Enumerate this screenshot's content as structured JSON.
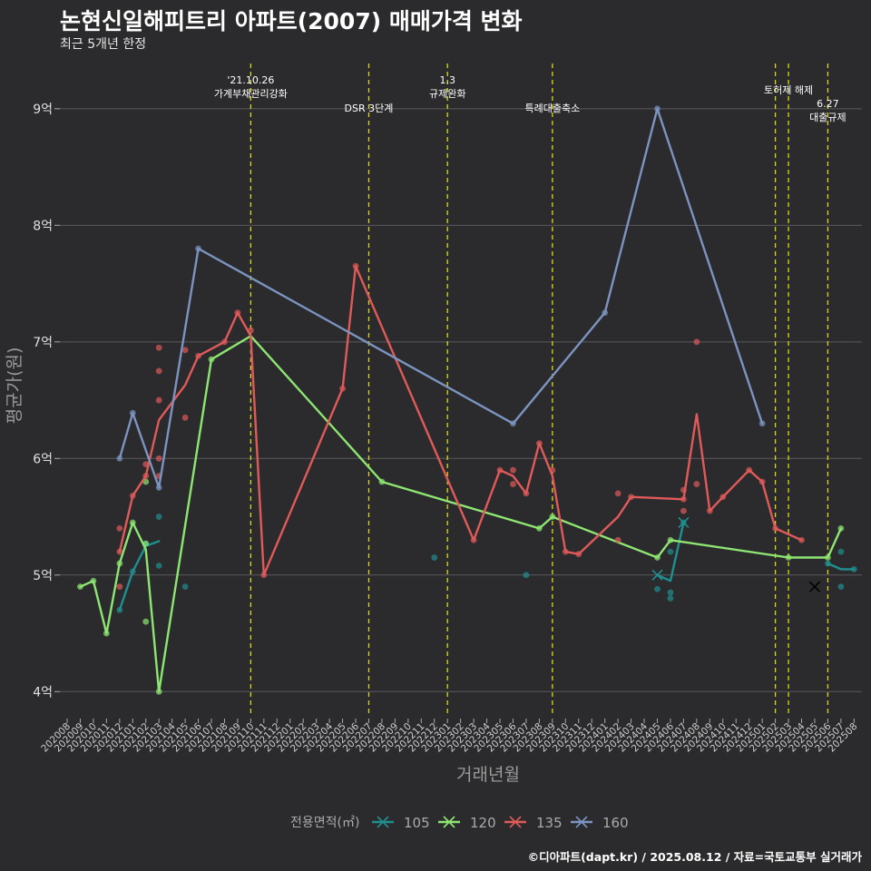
{
  "title": "논현신일해피트리 아파트(2007) 매매가격 변화",
  "subtitle": "최근 5개년 한정",
  "credit": "©디아파트(dapt.kr) / 2025.08.12 / 자료=국토교통부 실거래가",
  "colors": {
    "background": "#2b2b2d",
    "grid": "#5a5a5e",
    "event_line": "#d8d81c",
    "105": "#1f8f8f",
    "120": "#8ee672",
    "135": "#e05a5a",
    "160": "#7c94c0"
  },
  "chart_data": {
    "type": "line",
    "title": "논현신일해피트리 아파트(2007) 매매가격 변화",
    "subtitle": "최근 5개년 한정",
    "xlabel": "거래년월",
    "ylabel": "평균가(원)",
    "ylim": [
      3.8,
      9.45
    ],
    "xlim": [
      "2020-08",
      "2025-08"
    ],
    "y_ticks": [
      {
        "value": 4,
        "label": "4억"
      },
      {
        "value": 5,
        "label": "5억"
      },
      {
        "value": 6,
        "label": "6억"
      },
      {
        "value": 7,
        "label": "7억"
      },
      {
        "value": 8,
        "label": "8억"
      },
      {
        "value": 9,
        "label": "9억"
      }
    ],
    "x_ticks": [
      "202008",
      "202009",
      "202010",
      "202011",
      "202012",
      "202101",
      "202102",
      "202103",
      "202104",
      "202105",
      "202106",
      "202107",
      "202108",
      "202109",
      "202110",
      "202111",
      "202112",
      "202201",
      "202202",
      "202203",
      "202204",
      "202205",
      "202206",
      "202207",
      "202208",
      "202209",
      "202210",
      "202211",
      "202212",
      "202301",
      "202302",
      "202303",
      "202304",
      "202305",
      "202306",
      "202307",
      "202308",
      "202309",
      "202310",
      "202311",
      "202312",
      "202401",
      "202402",
      "202403",
      "202404",
      "202405",
      "202406",
      "202407",
      "202408",
      "202409",
      "202410",
      "202411",
      "202412",
      "202501",
      "202502",
      "202503",
      "202504",
      "202505",
      "202506",
      "202507",
      "202508"
    ],
    "grid": true,
    "legend_title": "전용면적(㎡)",
    "legend_position": "bottom",
    "events": [
      {
        "date": "2021-10",
        "label": "'21.10.26\n가계부채관리강화",
        "row": 0
      },
      {
        "date": "2022-07",
        "label": "DSR 3단계",
        "row": 1
      },
      {
        "date": "2023-01",
        "label": "1.3\n규제완화",
        "row": 0
      },
      {
        "date": "2023-09",
        "label": "특례대출축소",
        "row": 1
      },
      {
        "date": "2025-02",
        "label": "",
        "row": 0
      },
      {
        "date": "2025-03",
        "label": "토허제 해제",
        "row": 0
      },
      {
        "date": "2025-06",
        "label": "6.27\n대출규제",
        "row": 2
      }
    ],
    "series": [
      {
        "name": "105",
        "line": [
          [
            "2020-12",
            4.7
          ],
          [
            "2021-01",
            5.03
          ],
          [
            "2021-02",
            5.25
          ],
          [
            "2021-03",
            5.29
          ]
        ],
        "line2": [
          [
            "2024-05",
            5.0
          ],
          [
            "2024-06",
            4.95
          ],
          [
            "2024-07",
            5.45
          ]
        ],
        "line3": [
          [
            "2025-06",
            5.1
          ],
          [
            "2025-07",
            5.05
          ],
          [
            "2025-08",
            5.05
          ]
        ],
        "points": [
          [
            "2020-12",
            4.7
          ],
          [
            "2021-01",
            5.03
          ],
          [
            "2021-02",
            5.27
          ],
          [
            "2021-03",
            5.5
          ],
          [
            "2021-03",
            5.08
          ],
          [
            "2021-05",
            4.9
          ],
          [
            "2022-12",
            5.15
          ],
          [
            "2023-07",
            5.0
          ],
          [
            "2024-05",
            4.88
          ],
          [
            "2024-06",
            4.85
          ],
          [
            "2024-06",
            4.8
          ],
          [
            "2024-06",
            5.2
          ],
          [
            "2024-07",
            5.45
          ],
          [
            "2025-06",
            5.1
          ],
          [
            "2025-07",
            5.2
          ],
          [
            "2025-07",
            4.9
          ],
          [
            "2025-08",
            5.05
          ]
        ],
        "crosses": [
          [
            "2024-05",
            5.0
          ],
          [
            "2024-07",
            5.45
          ],
          [
            "2025-05",
            4.9
          ]
        ]
      },
      {
        "name": "120",
        "line": [
          [
            "2020-09",
            4.9
          ],
          [
            "2020-10",
            4.95
          ],
          [
            "2020-11",
            4.5
          ],
          [
            "2020-12",
            5.1
          ],
          [
            "2021-01",
            5.45
          ],
          [
            "2021-02",
            5.22
          ],
          [
            "2021-03",
            4.0
          ],
          [
            "2021-07",
            6.85
          ],
          [
            "2021-10",
            7.05
          ],
          [
            "2022-08",
            5.8
          ],
          [
            "2023-08",
            5.4
          ],
          [
            "2023-09",
            5.5
          ],
          [
            "2024-05",
            5.15
          ],
          [
            "2024-06",
            5.3
          ],
          [
            "2025-03",
            5.15
          ],
          [
            "2025-06",
            5.15
          ],
          [
            "2025-07",
            5.4
          ]
        ],
        "points": [
          [
            "2020-09",
            4.9
          ],
          [
            "2020-10",
            4.95
          ],
          [
            "2020-11",
            4.5
          ],
          [
            "2020-12",
            5.1
          ],
          [
            "2021-01",
            5.45
          ],
          [
            "2021-02",
            5.8
          ],
          [
            "2021-02",
            5.27
          ],
          [
            "2021-02",
            4.6
          ],
          [
            "2021-03",
            4.0
          ],
          [
            "2021-07",
            6.85
          ],
          [
            "2022-08",
            5.8
          ],
          [
            "2023-08",
            5.4
          ],
          [
            "2023-09",
            5.5
          ],
          [
            "2024-05",
            5.15
          ],
          [
            "2024-06",
            5.3
          ],
          [
            "2025-03",
            5.15
          ],
          [
            "2025-06",
            5.15
          ],
          [
            "2025-07",
            5.4
          ]
        ]
      },
      {
        "name": "135",
        "line": [
          [
            "2020-12",
            5.2
          ],
          [
            "2021-01",
            5.68
          ],
          [
            "2021-02",
            5.85
          ],
          [
            "2021-03",
            6.33
          ],
          [
            "2021-05",
            6.63
          ],
          [
            "2021-06",
            6.88
          ],
          [
            "2021-08",
            7.0
          ],
          [
            "2021-09",
            7.25
          ],
          [
            "2021-10",
            7.05
          ],
          [
            "2021-11",
            5.0
          ],
          [
            "2022-05",
            6.6
          ],
          [
            "2022-06",
            7.65
          ],
          [
            "2023-03",
            5.3
          ],
          [
            "2023-05",
            5.9
          ],
          [
            "2023-06",
            5.85
          ],
          [
            "2023-07",
            5.7
          ],
          [
            "2023-08",
            6.13
          ],
          [
            "2023-09",
            5.85
          ],
          [
            "2023-10",
            5.2
          ],
          [
            "2023-11",
            5.18
          ],
          [
            "2024-02",
            5.5
          ],
          [
            "2024-03",
            5.67
          ],
          [
            "2024-07",
            5.65
          ],
          [
            "2024-08",
            6.38
          ],
          [
            "2024-09",
            5.55
          ],
          [
            "2024-10",
            5.67
          ],
          [
            "2024-12",
            5.9
          ],
          [
            "2025-01",
            5.8
          ],
          [
            "2025-02",
            5.4
          ],
          [
            "2025-04",
            5.3
          ]
        ],
        "points": [
          [
            "2020-12",
            5.4
          ],
          [
            "2020-12",
            5.2
          ],
          [
            "2020-12",
            4.9
          ],
          [
            "2021-01",
            5.68
          ],
          [
            "2021-02",
            5.95
          ],
          [
            "2021-02",
            5.85
          ],
          [
            "2021-03",
            6.95
          ],
          [
            "2021-03",
            6.75
          ],
          [
            "2021-03",
            6.5
          ],
          [
            "2021-03",
            6.0
          ],
          [
            "2021-03",
            5.85
          ],
          [
            "2021-05",
            6.93
          ],
          [
            "2021-05",
            6.35
          ],
          [
            "2021-06",
            6.88
          ],
          [
            "2021-08",
            7.0
          ],
          [
            "2021-09",
            7.25
          ],
          [
            "2021-10",
            7.1
          ],
          [
            "2021-11",
            5.0
          ],
          [
            "2022-05",
            6.6
          ],
          [
            "2022-06",
            7.65
          ],
          [
            "2023-03",
            5.3
          ],
          [
            "2023-05",
            5.9
          ],
          [
            "2023-06",
            5.9
          ],
          [
            "2023-06",
            5.78
          ],
          [
            "2023-07",
            5.7
          ],
          [
            "2023-08",
            6.13
          ],
          [
            "2023-09",
            5.9
          ],
          [
            "2023-10",
            5.2
          ],
          [
            "2023-11",
            5.18
          ],
          [
            "2024-02",
            5.7
          ],
          [
            "2024-02",
            5.3
          ],
          [
            "2024-03",
            5.67
          ],
          [
            "2024-07",
            5.73
          ],
          [
            "2024-07",
            5.65
          ],
          [
            "2024-07",
            5.55
          ],
          [
            "2024-08",
            7.0
          ],
          [
            "2024-08",
            5.78
          ],
          [
            "2024-09",
            5.55
          ],
          [
            "2024-10",
            5.67
          ],
          [
            "2024-12",
            5.9
          ],
          [
            "2025-01",
            5.8
          ],
          [
            "2025-02",
            5.4
          ],
          [
            "2025-04",
            5.3
          ]
        ]
      },
      {
        "name": "160",
        "line": [
          [
            "2020-12",
            6.0
          ],
          [
            "2021-01",
            6.39
          ],
          [
            "2021-03",
            5.75
          ],
          [
            "2021-06",
            7.8
          ],
          [
            "2023-06",
            6.3
          ],
          [
            "2024-01",
            7.25
          ],
          [
            "2024-05",
            9.0
          ],
          [
            "2025-01",
            6.3
          ]
        ],
        "points": [
          [
            "2020-12",
            6.0
          ],
          [
            "2021-01",
            6.39
          ],
          [
            "2021-03",
            5.75
          ],
          [
            "2021-06",
            7.8
          ],
          [
            "2023-06",
            6.3
          ],
          [
            "2024-01",
            7.25
          ],
          [
            "2024-05",
            9.0
          ],
          [
            "2025-01",
            6.3
          ]
        ]
      }
    ]
  }
}
